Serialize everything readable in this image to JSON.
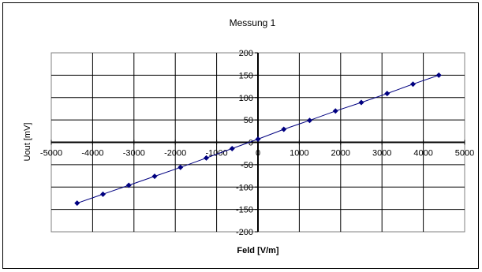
{
  "chart_data": {
    "type": "scatter",
    "title": "Messung 1",
    "xlabel": "Feld [V/m]",
    "ylabel": "Uout [mV]",
    "xlim": [
      -5000,
      5000
    ],
    "ylim": [
      -200,
      200
    ],
    "x_ticks": [
      -5000,
      -4000,
      -3000,
      -2000,
      -1000,
      0,
      1000,
      2000,
      3000,
      4000,
      5000
    ],
    "y_ticks": [
      -200,
      -150,
      -100,
      -50,
      0,
      50,
      100,
      150,
      200
    ],
    "grid": true,
    "legend": "none",
    "series": [
      {
        "color": "#000080",
        "marker": "diamond",
        "line": true,
        "x": [
          -4375,
          -3750,
          -3125,
          -2500,
          -1875,
          -1250,
          -625,
          0,
          625,
          1250,
          1875,
          2500,
          3125,
          3750,
          4375
        ],
        "y": [
          -136,
          -116,
          -96,
          -76,
          -56,
          -35,
          -14,
          7,
          29,
          49,
          70,
          89,
          109,
          130,
          150
        ]
      }
    ]
  }
}
